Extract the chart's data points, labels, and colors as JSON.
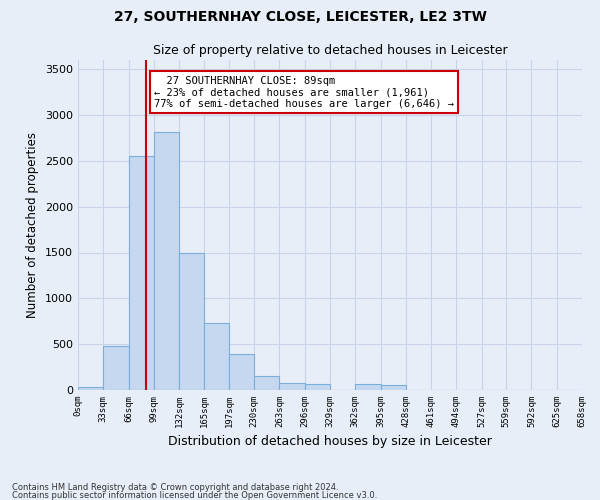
{
  "title1": "27, SOUTHERNHAY CLOSE, LEICESTER, LE2 3TW",
  "title2": "Size of property relative to detached houses in Leicester",
  "xlabel": "Distribution of detached houses by size in Leicester",
  "ylabel": "Number of detached properties",
  "footer1": "Contains HM Land Registry data © Crown copyright and database right 2024.",
  "footer2": "Contains public sector information licensed under the Open Government Licence v3.0.",
  "bin_edges": [
    0,
    33,
    66,
    99,
    132,
    165,
    197,
    230,
    263,
    296,
    329,
    362,
    395,
    428,
    461,
    494,
    527,
    559,
    592,
    625,
    658
  ],
  "bar_values": [
    30,
    480,
    2550,
    2820,
    1500,
    730,
    390,
    150,
    80,
    65,
    0,
    65,
    60,
    0,
    0,
    0,
    0,
    0,
    0,
    0
  ],
  "bar_color": "#c5d8f0",
  "bar_edge_color": "#7aaedb",
  "grid_color": "#c8d4e8",
  "vline_x": 89,
  "vline_color": "#cc0000",
  "annotation_text": "  27 SOUTHERNHAY CLOSE: 89sqm  \n← 23% of detached houses are smaller (1,961)\n77% of semi-detached houses are larger (6,646) →",
  "annotation_box_color": "white",
  "annotation_box_edge": "#cc0000",
  "ylim": [
    0,
    3600
  ],
  "yticks": [
    0,
    500,
    1000,
    1500,
    2000,
    2500,
    3000,
    3500
  ],
  "bg_color": "#e8eef8"
}
